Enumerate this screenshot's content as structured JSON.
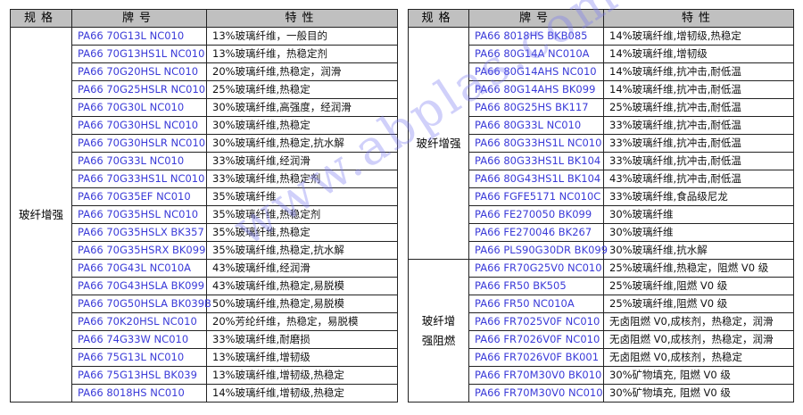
{
  "headers": {
    "spec": "规格",
    "grade": "牌号",
    "property": "特性"
  },
  "watermark": "www.abplas.com",
  "colors": {
    "grade_text": "#3a3ad8",
    "header_bg": "#c0c0c0"
  },
  "left_table": {
    "groups": [
      {
        "label": "玻纤增强",
        "rows": [
          {
            "grade": "PA66 70G13L NC010",
            "property": "13%玻璃纤维，一般目的"
          },
          {
            "grade": "PA66 70G13HS1L NC010",
            "property": "13%玻璃纤维，热稳定剂"
          },
          {
            "grade": "PA66 70G20HSL NC010",
            "property": "20%玻璃纤维,热稳定，润滑"
          },
          {
            "grade": "PA66 70G25HSLR NC010",
            "property": "25%玻璃纤维,热稳定"
          },
          {
            "grade": "PA66 70G30L NC010",
            "property": "30%玻璃纤维,高强度，经润滑"
          },
          {
            "grade": "PA66 70G30HSL NC010",
            "property": "30%玻璃纤维,热稳定"
          },
          {
            "grade": "PA66 70G30HSLR NC010",
            "property": "30%玻璃纤维,热稳定,抗水解"
          },
          {
            "grade": "PA66 70G33L NC010",
            "property": "33%玻璃纤维,经润滑"
          },
          {
            "grade": "PA66 70G33HS1L NC010",
            "property": "33%玻璃纤维,热稳定剂"
          },
          {
            "grade": "PA66 70G35EF NC010",
            "property": "35%玻璃纤维"
          },
          {
            "grade": "PA66 70G35HSL NC010",
            "property": "35%玻璃纤维,热稳定剂"
          },
          {
            "grade": "PA66 70G35HSLX BK357",
            "property": "35%玻璃纤维,热稳定"
          },
          {
            "grade": "PA66 70G35HSRX BK099",
            "property": "35%玻璃纤维,热稳定,抗水解"
          },
          {
            "grade": "PA66 70G43L NC010A",
            "property": "43%玻璃纤维,经润滑"
          },
          {
            "grade": "PA66 70G43HSLA BK099",
            "property": "43%玻璃纤维,热稳定,易脱模"
          },
          {
            "grade": "PA66 70G50HSLA BK039B",
            "property": "50%玻璃纤维,热稳定,易脱模"
          },
          {
            "grade": "PA66 70K20HSL NC010",
            "property": "20%芳纶纤维，热稳定，易脱模"
          },
          {
            "grade": "PA66 74G33W NC010",
            "property": "33%玻璃纤维,耐磨损"
          },
          {
            "grade": "PA66 75G13L NC010",
            "property": "13%玻璃纤维,增韧级"
          },
          {
            "grade": "PA66 75G13HSL BK039",
            "property": "13%玻璃纤维,增韧级,热稳定"
          },
          {
            "grade": "PA66 8018HS NC010",
            "property": "14%玻璃纤维,增韧级,热稳定"
          }
        ]
      }
    ]
  },
  "right_table": {
    "groups": [
      {
        "label": "玻纤增强",
        "rows": [
          {
            "grade": "PA66 8018HS BKB085",
            "property": "14%玻璃纤维,增韧级,热稳定"
          },
          {
            "grade": "PA66 80G14A NC010A",
            "property": "14%玻璃纤维,增韧级"
          },
          {
            "grade": "PA66 80G14AHS NC010",
            "property": "14%玻璃纤维,抗冲击,耐低温"
          },
          {
            "grade": "PA66 80G14AHS BK099",
            "property": "14%玻璃纤维,抗冲击,耐低温"
          },
          {
            "grade": "PA66 80G25HS BK117",
            "property": "25%玻璃纤维,抗冲击,耐低温"
          },
          {
            "grade": "PA66 80G33L NC010",
            "property": "33%玻璃纤维,抗冲击,耐低温"
          },
          {
            "grade": "PA66 80G33HS1L NC010",
            "property": "33%玻璃纤维,抗冲击,耐低温"
          },
          {
            "grade": "PA66 80G33HS1L BK104",
            "property": "33%玻璃纤维,抗冲击,耐低温"
          },
          {
            "grade": "PA66 80G43HS1L BK104",
            "property": "43%玻璃纤维,抗冲击,耐低温"
          },
          {
            "grade": "PA66 FGFE5171 NC010C",
            "property": "33%玻璃纤维,食品级尼龙"
          },
          {
            "grade": "PA66 FE270050 BK099",
            "property": "30%玻璃纤维"
          },
          {
            "grade": "PA66 FE270046 BK267",
            "property": "30%玻璃纤维"
          },
          {
            "grade": "PA66 PLS90G30DR BK099",
            "property": "30%玻璃纤维,抗水解"
          }
        ]
      },
      {
        "label": "玻纤增强阻燃",
        "rows": [
          {
            "grade": "PA66 FR70G25V0 NC010",
            "property": "25%玻璃纤维,热稳定，阻燃 V0 级"
          },
          {
            "grade": "PA66 FR50 BK505",
            "property": "25%玻璃纤维,阻燃 V0 级"
          },
          {
            "grade": "PA66 FR50 NC010A",
            "property": "25%玻璃纤维,阻燃 V0 级"
          },
          {
            "grade": "PA66 FR7025V0F NC010",
            "property": "无卤阻燃 V0,成核剂，热稳定，润滑"
          },
          {
            "grade": "PA66 FR7026V0F NC010",
            "property": "无卤阻燃 V0,成核剂，热稳定，润滑"
          },
          {
            "grade": "PA66 FR7026V0F BK001",
            "property": "无卤阻燃 V0,成核剂，热稳定"
          },
          {
            "grade": "PA66 FR70M30V0 BK010",
            "property": "30%矿物填充, 阻燃 V0 级"
          },
          {
            "grade": "PA66 FR70M30V0 NC010",
            "property": "30%矿物填充, 阻燃 V0 级"
          }
        ]
      }
    ]
  }
}
